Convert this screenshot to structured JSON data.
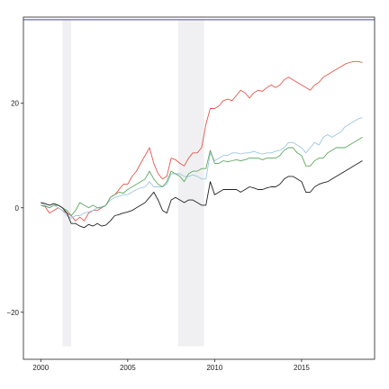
{
  "chart_data": {
    "type": "line",
    "title": "",
    "xlabel": "",
    "ylabel": "",
    "xlim": [
      1999.0,
      2019.2
    ],
    "ylim": [
      -29.0,
      36.5
    ],
    "x_ticks": [
      2000,
      2005,
      2010,
      2015
    ],
    "y_ticks": [
      -20,
      0,
      20
    ],
    "x_tick_labels": [
      "2000",
      "2005",
      "2010",
      "2015"
    ],
    "y_tick_labels": [
      "−20",
      "0",
      "20"
    ],
    "grid": false,
    "legend": "none",
    "reference_line": {
      "y": 36.0,
      "color": "#6b6fa8"
    },
    "shaded_regions": [
      {
        "x0": 2001.25,
        "x1": 2001.75,
        "y0": -26.5,
        "y1": 36.0,
        "color": "#f0f0f2"
      },
      {
        "x0": 2007.9,
        "x1": 2009.4,
        "y0": -26.5,
        "y1": 36.0,
        "color": "#f0f0f2"
      }
    ],
    "series": [
      {
        "color": "#e4574c",
        "x": [
          2000.0,
          2000.25,
          2000.5,
          2000.75,
          2001.0,
          2001.25,
          2001.5,
          2001.75,
          2002.0,
          2002.25,
          2002.5,
          2002.75,
          2003.0,
          2003.25,
          2003.5,
          2003.75,
          2004.0,
          2004.25,
          2004.5,
          2004.75,
          2005.0,
          2005.25,
          2005.5,
          2005.75,
          2006.0,
          2006.25,
          2006.5,
          2006.75,
          2007.0,
          2007.25,
          2007.5,
          2007.75,
          2008.0,
          2008.25,
          2008.5,
          2008.75,
          2009.0,
          2009.25,
          2009.5,
          2009.75,
          2010.0,
          2010.25,
          2010.5,
          2010.75,
          2011.0,
          2011.25,
          2011.5,
          2011.75,
          2012.0,
          2012.25,
          2012.5,
          2012.75,
          2013.0,
          2013.25,
          2013.5,
          2013.75,
          2014.0,
          2014.25,
          2014.5,
          2014.75,
          2015.0,
          2015.25,
          2015.5,
          2015.75,
          2016.0,
          2016.25,
          2016.5,
          2016.75,
          2017.0,
          2017.25,
          2017.5,
          2017.75,
          2018.0,
          2018.25,
          2018.5
        ],
        "y": [
          0.5,
          0.2,
          -1.0,
          -0.5,
          0.0,
          -0.5,
          -1.0,
          -1.5,
          -2.5,
          -1.8,
          -2.5,
          -1.0,
          -0.5,
          -0.5,
          0.0,
          0.5,
          2.0,
          2.5,
          3.5,
          4.5,
          4.5,
          6.0,
          7.0,
          8.5,
          10.0,
          11.5,
          8.5,
          6.5,
          5.5,
          6.0,
          9.5,
          9.2,
          8.5,
          8.0,
          9.5,
          10.5,
          10.5,
          11.5,
          16.0,
          19.0,
          19.0,
          19.5,
          20.5,
          20.8,
          20.5,
          21.5,
          22.5,
          22.0,
          21.0,
          22.0,
          22.5,
          22.3,
          23.0,
          23.5,
          23.0,
          23.5,
          24.5,
          25.0,
          24.5,
          24.0,
          23.5,
          23.0,
          22.5,
          23.5,
          24.0,
          25.0,
          25.5,
          26.0,
          26.5,
          27.0,
          27.5,
          27.8,
          28.0,
          28.0,
          27.8
        ]
      },
      {
        "color": "#9ac6e2",
        "x": [
          2000.0,
          2000.25,
          2000.5,
          2000.75,
          2001.0,
          2001.25,
          2001.5,
          2001.75,
          2002.0,
          2002.25,
          2002.5,
          2002.75,
          2003.0,
          2003.25,
          2003.5,
          2003.75,
          2004.0,
          2004.25,
          2004.5,
          2004.75,
          2005.0,
          2005.25,
          2005.5,
          2005.75,
          2006.0,
          2006.25,
          2006.5,
          2006.75,
          2007.0,
          2007.25,
          2007.5,
          2007.75,
          2008.0,
          2008.25,
          2008.5,
          2008.75,
          2009.0,
          2009.25,
          2009.5,
          2009.75,
          2010.0,
          2010.25,
          2010.5,
          2010.75,
          2011.0,
          2011.25,
          2011.5,
          2011.75,
          2012.0,
          2012.25,
          2012.5,
          2012.75,
          2013.0,
          2013.25,
          2013.5,
          2013.75,
          2014.0,
          2014.25,
          2014.5,
          2014.75,
          2015.0,
          2015.25,
          2015.5,
          2015.75,
          2016.0,
          2016.25,
          2016.5,
          2016.75,
          2017.0,
          2017.25,
          2017.5,
          2017.75,
          2018.0,
          2018.25,
          2018.5
        ],
        "y": [
          1.0,
          0.5,
          0.0,
          0.5,
          0.0,
          -0.5,
          -1.5,
          -2.0,
          -1.5,
          -1.5,
          -1.0,
          -0.8,
          -0.5,
          0.0,
          0.2,
          0.5,
          1.5,
          2.0,
          2.2,
          2.5,
          2.5,
          3.0,
          3.5,
          3.8,
          4.0,
          5.0,
          4.0,
          4.0,
          4.0,
          4.5,
          6.5,
          6.5,
          6.5,
          6.0,
          6.0,
          6.3,
          6.0,
          5.5,
          5.5,
          10.5,
          9.0,
          9.5,
          10.0,
          10.0,
          10.5,
          10.5,
          10.3,
          10.5,
          10.5,
          10.8,
          10.5,
          10.3,
          10.5,
          10.5,
          10.8,
          11.0,
          11.5,
          12.5,
          12.5,
          12.0,
          11.5,
          10.5,
          11.5,
          12.5,
          12.0,
          13.5,
          14.0,
          13.5,
          14.0,
          14.5,
          15.5,
          16.0,
          16.5,
          17.0,
          17.3
        ]
      },
      {
        "color": "#5fa861",
        "x": [
          2000.0,
          2000.25,
          2000.5,
          2000.75,
          2001.0,
          2001.25,
          2001.5,
          2001.75,
          2002.0,
          2002.25,
          2002.5,
          2002.75,
          2003.0,
          2003.25,
          2003.5,
          2003.75,
          2004.0,
          2004.25,
          2004.5,
          2004.75,
          2005.0,
          2005.25,
          2005.5,
          2005.75,
          2006.0,
          2006.25,
          2006.5,
          2006.75,
          2007.0,
          2007.25,
          2007.5,
          2007.75,
          2008.0,
          2008.25,
          2008.5,
          2008.75,
          2009.0,
          2009.25,
          2009.5,
          2009.75,
          2010.0,
          2010.25,
          2010.5,
          2010.75,
          2011.0,
          2011.25,
          2011.5,
          2011.75,
          2012.0,
          2012.25,
          2012.5,
          2012.75,
          2013.0,
          2013.25,
          2013.5,
          2013.75,
          2014.0,
          2014.25,
          2014.5,
          2014.75,
          2015.0,
          2015.25,
          2015.5,
          2015.75,
          2016.0,
          2016.25,
          2016.5,
          2016.75,
          2017.0,
          2017.25,
          2017.5,
          2017.75,
          2018.0,
          2018.25,
          2018.5
        ],
        "y": [
          0.5,
          0.3,
          0.0,
          0.5,
          0.5,
          0.0,
          -0.5,
          -1.5,
          -0.5,
          1.0,
          0.5,
          0.0,
          0.5,
          0.0,
          0.0,
          0.5,
          2.0,
          2.5,
          3.0,
          2.8,
          3.5,
          4.0,
          4.5,
          5.0,
          5.5,
          7.0,
          5.5,
          4.5,
          4.0,
          5.0,
          7.0,
          6.5,
          6.0,
          5.0,
          6.5,
          7.0,
          7.0,
          7.5,
          7.5,
          11.0,
          8.5,
          8.5,
          9.0,
          8.8,
          9.0,
          9.2,
          9.0,
          9.2,
          9.5,
          9.5,
          9.5,
          9.2,
          9.5,
          9.5,
          9.5,
          10.0,
          11.0,
          11.5,
          11.5,
          10.5,
          10.0,
          8.0,
          8.0,
          9.0,
          9.5,
          9.5,
          10.5,
          11.0,
          11.5,
          11.5,
          11.5,
          12.0,
          12.5,
          13.0,
          13.5
        ]
      },
      {
        "color": "#222222",
        "x": [
          2000.0,
          2000.25,
          2000.5,
          2000.75,
          2001.0,
          2001.25,
          2001.5,
          2001.75,
          2002.0,
          2002.25,
          2002.5,
          2002.75,
          2003.0,
          2003.25,
          2003.5,
          2003.75,
          2004.0,
          2004.25,
          2004.5,
          2004.75,
          2005.0,
          2005.25,
          2005.5,
          2005.75,
          2006.0,
          2006.25,
          2006.5,
          2006.75,
          2007.0,
          2007.25,
          2007.5,
          2007.75,
          2008.0,
          2008.25,
          2008.5,
          2008.75,
          2009.0,
          2009.25,
          2009.5,
          2009.75,
          2010.0,
          2010.25,
          2010.5,
          2010.75,
          2011.0,
          2011.25,
          2011.5,
          2011.75,
          2012.0,
          2012.25,
          2012.5,
          2012.75,
          2013.0,
          2013.25,
          2013.5,
          2013.75,
          2014.0,
          2014.25,
          2014.5,
          2014.75,
          2015.0,
          2015.25,
          2015.5,
          2015.75,
          2016.0,
          2016.25,
          2016.5,
          2016.75,
          2017.0,
          2017.25,
          2017.5,
          2017.75,
          2018.0,
          2018.25,
          2018.5
        ],
        "y": [
          1.0,
          0.8,
          0.5,
          0.8,
          0.5,
          0.0,
          -1.0,
          -3.0,
          -3.0,
          -3.5,
          -3.8,
          -3.2,
          -3.5,
          -3.0,
          -3.5,
          -3.3,
          -2.5,
          -1.5,
          -1.3,
          -1.0,
          -0.8,
          -0.5,
          0.0,
          0.5,
          1.0,
          2.0,
          3.0,
          1.5,
          -0.5,
          -1.0,
          1.5,
          2.0,
          1.5,
          1.0,
          1.5,
          1.5,
          1.0,
          0.5,
          0.5,
          5.0,
          2.5,
          3.0,
          3.5,
          3.5,
          3.5,
          3.5,
          3.0,
          3.5,
          4.0,
          3.8,
          3.5,
          3.5,
          3.8,
          4.0,
          4.0,
          4.5,
          5.5,
          6.0,
          6.0,
          5.5,
          5.0,
          3.0,
          3.0,
          4.0,
          4.5,
          4.8,
          5.0,
          5.5,
          6.0,
          6.5,
          7.0,
          7.5,
          8.0,
          8.5,
          9.0
        ]
      }
    ]
  }
}
